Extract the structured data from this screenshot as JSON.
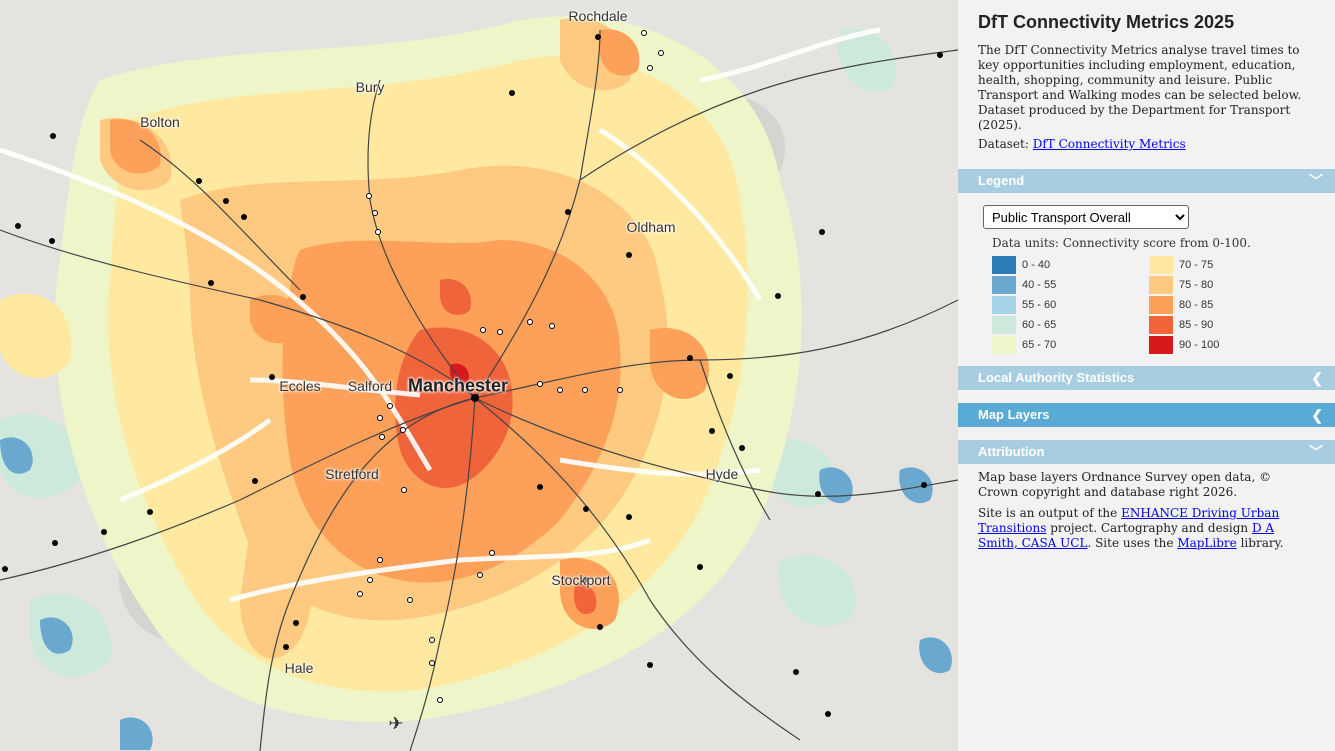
{
  "panel": {
    "title": "DfT Connectivity Metrics 2025",
    "description": "The DfT Connectivity Metrics analyse travel times to key opportunities including employment, education, health, shopping, community and leisure. Public Transport and Walking modes can be selected below. Dataset produced by the Department for Transport (2025).",
    "dataset_label": "Dataset:",
    "dataset_link": "DfT Connectivity Metrics"
  },
  "legend": {
    "header": "Legend",
    "selected_mode": "Public Transport Overall",
    "units": "Data units: Connectivity score from 0-100.",
    "items": [
      {
        "label": "0 - 40",
        "color": "#2c7bb6"
      },
      {
        "label": "70 - 75",
        "color": "#ffe9a1"
      },
      {
        "label": "40 - 55",
        "color": "#6aa8cf"
      },
      {
        "label": "75 - 80",
        "color": "#fec980"
      },
      {
        "label": "55 - 60",
        "color": "#a6d3e8"
      },
      {
        "label": "80 - 85",
        "color": "#fca05a"
      },
      {
        "label": "60 - 65",
        "color": "#cde9dc"
      },
      {
        "label": "85 - 90",
        "color": "#f0643c"
      },
      {
        "label": "65 - 70",
        "color": "#eef5c8"
      },
      {
        "label": "90 - 100",
        "color": "#d7191c"
      }
    ]
  },
  "sections": {
    "local_authority": "Local Authority Statistics",
    "map_layers": "Map Layers",
    "attribution": "Attribution"
  },
  "colors": {
    "header_light": "#a9cde0",
    "header_dark": "#5aaad6"
  },
  "attribution": {
    "p1": "Map base layers Ordnance Survey open data, © Crown copyright and database right 2026.",
    "p2_a": "Site is an output of the",
    "p2_link1": "ENHANCE Driving Urban Transitions",
    "p2_b": "project. Cartography and design",
    "p2_link2": "D A Smith, CASA UCL",
    "p2_c": ". Site uses the",
    "p2_link3": "MapLibre",
    "p2_d": "library."
  },
  "map": {
    "places": {
      "rochdale": "Rochdale",
      "bury": "Bury",
      "bolton": "Bolton",
      "oldham": "Oldham",
      "eccles": "Eccles",
      "salford": "Salford",
      "manchester": "Manchester",
      "stretford": "Stretford",
      "hyde": "Hyde",
      "stockport": "Stockport",
      "hale": "Hale"
    },
    "airport_icon": "airplane-icon"
  }
}
